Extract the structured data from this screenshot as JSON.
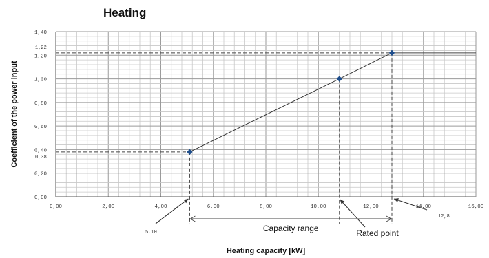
{
  "chart_data": {
    "type": "line",
    "title": "Heating",
    "xlabel": "Heating capacity [kW]",
    "ylabel": "Coefficient of the power input",
    "xlim": [
      0,
      16
    ],
    "ylim": [
      0,
      1.4
    ],
    "x_ticks": [
      "0,00",
      "2,00",
      "4,00",
      "6,00",
      "8,00",
      "10,00",
      "12,00",
      "14,00",
      "16,00"
    ],
    "y_ticks": [
      "0,00",
      "0,20",
      "0,40",
      "0,60",
      "0,80",
      "1,00",
      "1,20",
      "1,40"
    ],
    "grid": true,
    "series": [
      {
        "x": [
          5.1,
          10.8,
          12.8
        ],
        "y": [
          0.38,
          1.0,
          1.22
        ],
        "color": "#1f4e8c"
      }
    ],
    "reference_lines": [
      {
        "kind": "h",
        "y": 1.22,
        "x_from": 0,
        "x_to": 12.8,
        "style": "dashed"
      },
      {
        "kind": "h",
        "y": 1.22,
        "x_from": 12.8,
        "x_to": 16,
        "style": "solid"
      },
      {
        "kind": "h",
        "y": 0.38,
        "x_from": 0,
        "x_to": 5.1,
        "style": "dashed"
      },
      {
        "kind": "v",
        "x": 5.1,
        "y_from": 0.38,
        "style": "dashed"
      },
      {
        "kind": "v",
        "x": 10.8,
        "y_from": 1.0,
        "style": "dashed"
      },
      {
        "kind": "v",
        "x": 12.8,
        "y_from": 1.22,
        "style": "dashed"
      }
    ],
    "annotations": {
      "y_max_value": "1,22",
      "y_min_value": "0,38",
      "x_min_value": "5.10",
      "x_max_value": "12,8",
      "capacity_range": "Capacity range",
      "rated_point": "Rated point"
    }
  }
}
